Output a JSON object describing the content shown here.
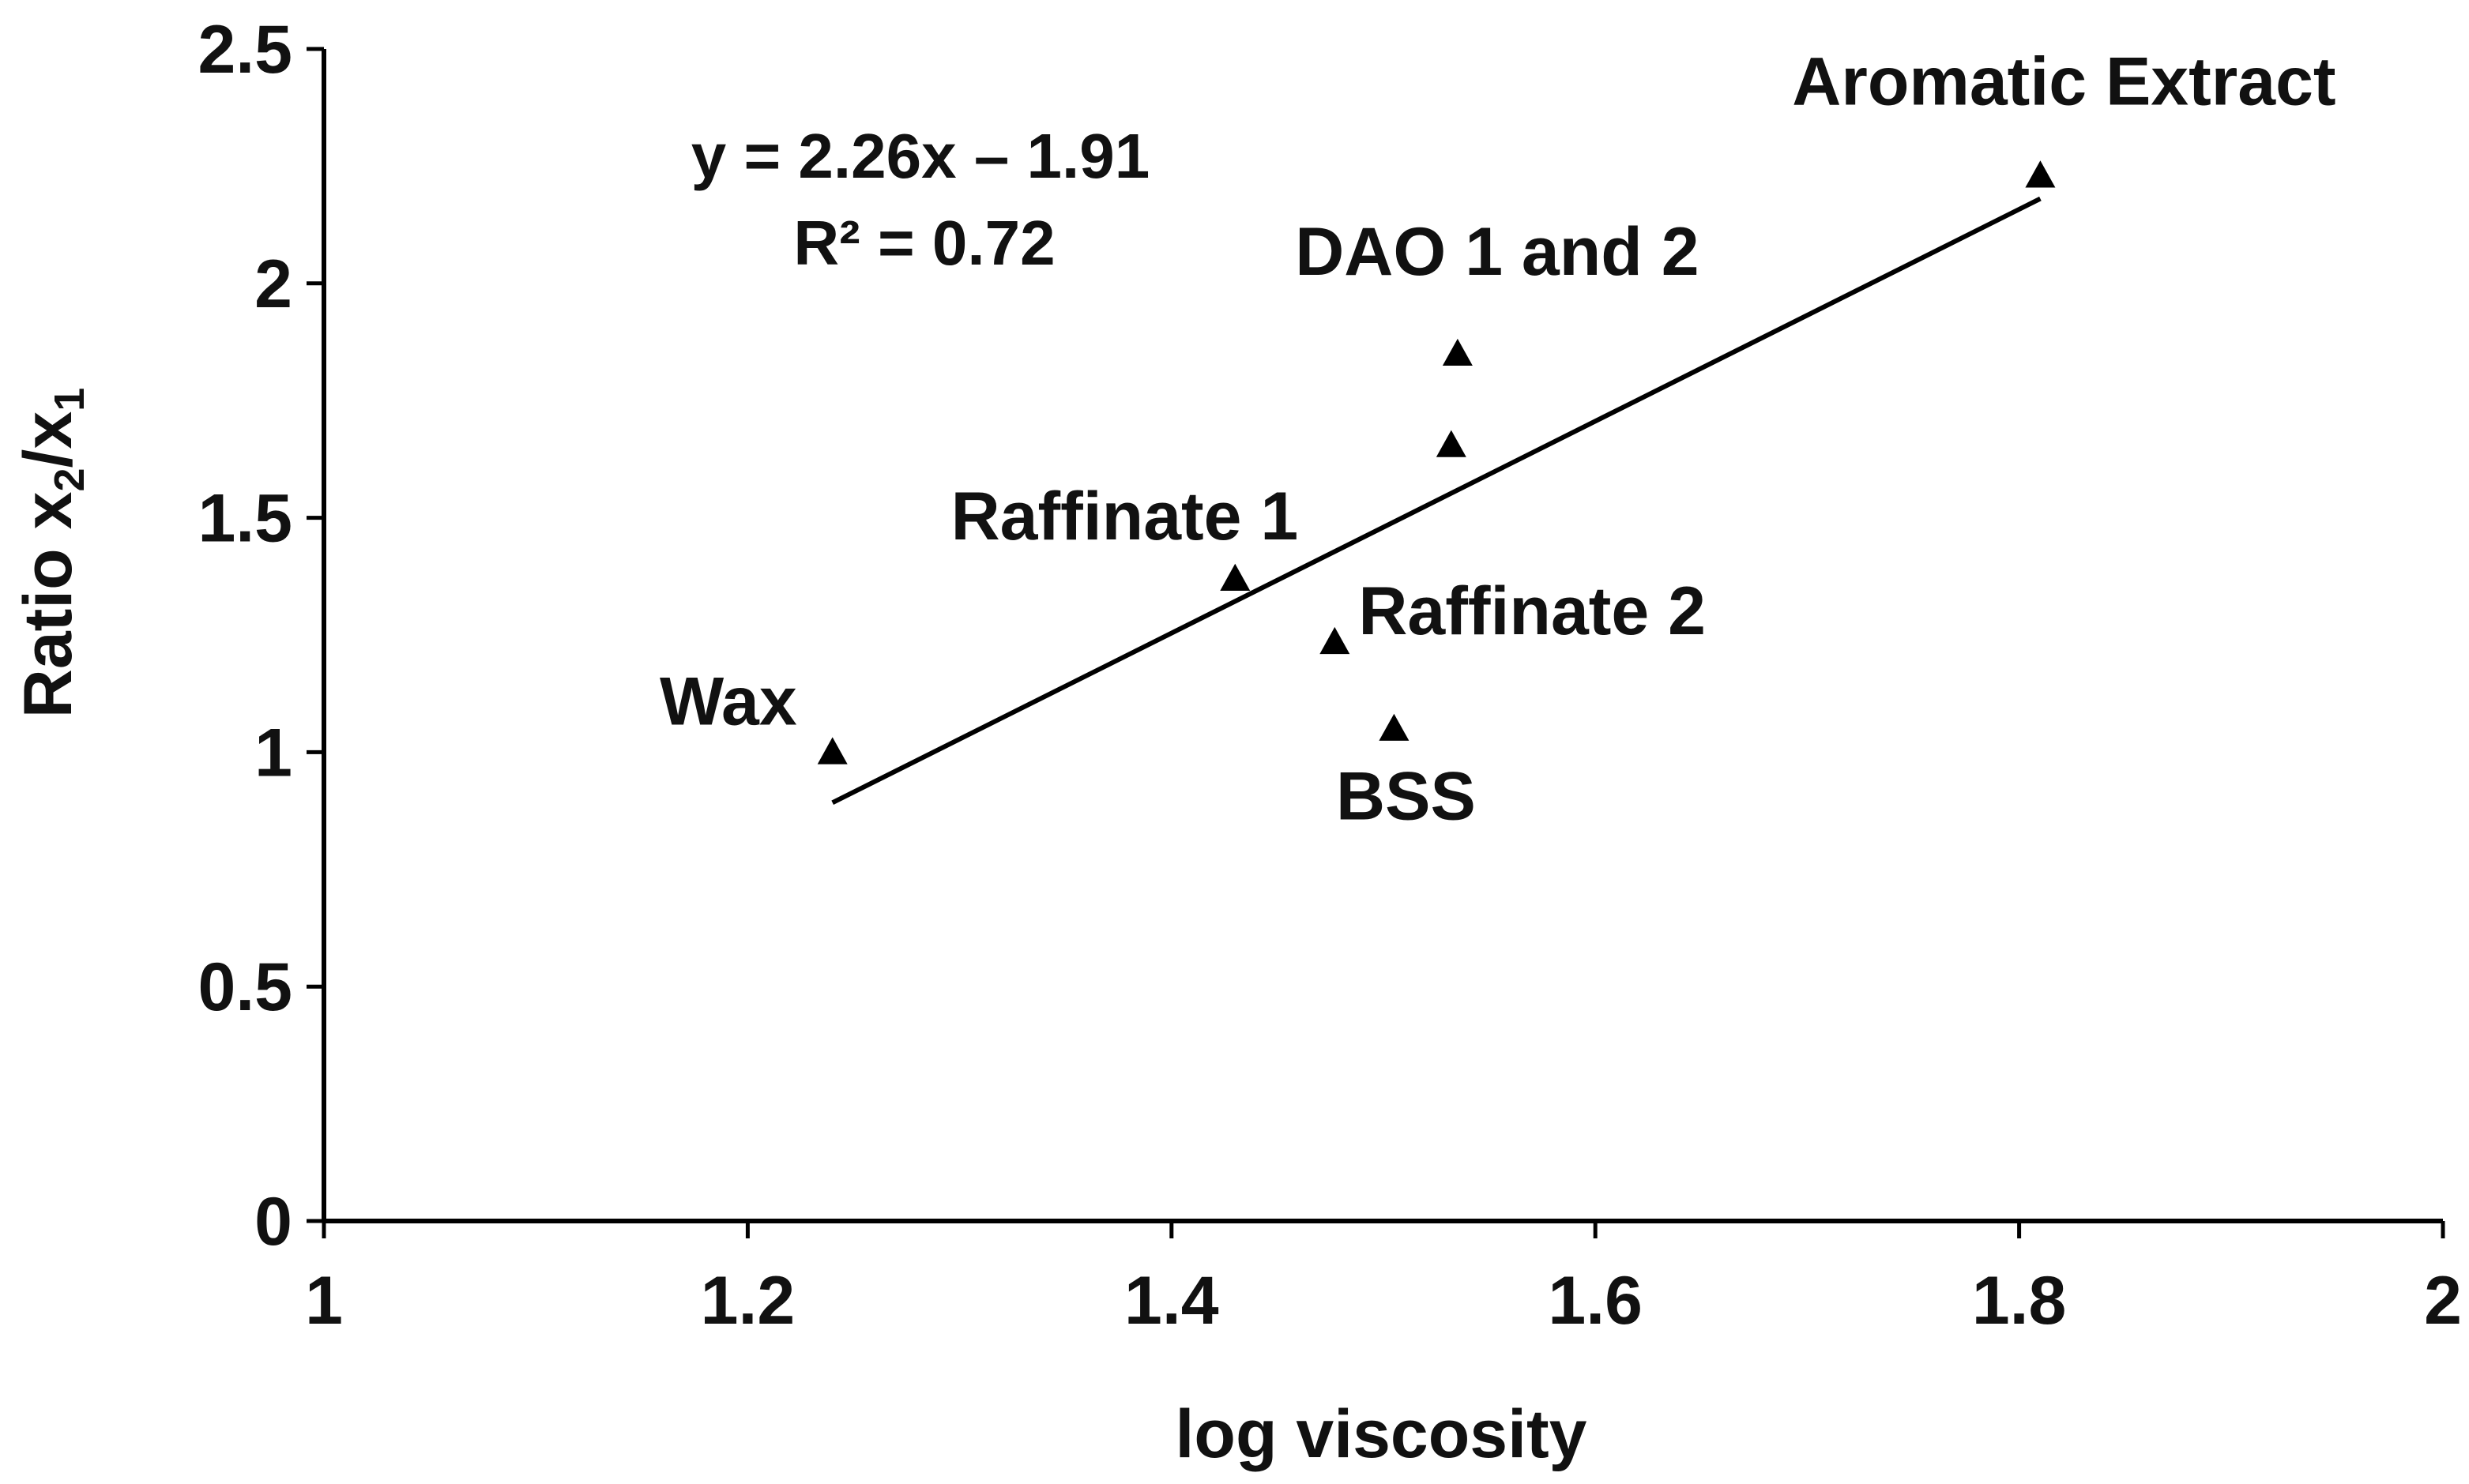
{
  "chart_data": {
    "type": "scatter",
    "title": "",
    "xlabel": "log viscosity",
    "ylabel_main": "Ratio x",
    "ylabel_sub1": "2",
    "ylabel_slash": "/x",
    "ylabel_sub2": "1",
    "xlim": [
      1,
      2
    ],
    "ylim": [
      0,
      2.5
    ],
    "x_ticks": [
      1,
      1.2,
      1.4,
      1.6,
      1.8,
      2
    ],
    "x_tick_labels": [
      "1",
      "1.2",
      "1.4",
      "1.6",
      "1.8",
      "2"
    ],
    "y_ticks": [
      0,
      0.5,
      1,
      1.5,
      2,
      2.5
    ],
    "y_tick_labels": [
      "0",
      "0.5",
      "1",
      "1.5",
      "2",
      "2.5"
    ],
    "grid": false,
    "legend": false,
    "marker": "triangle",
    "marker_color": "#000000",
    "points": [
      {
        "x": 1.24,
        "y": 1.0
      },
      {
        "x": 1.43,
        "y": 1.37
      },
      {
        "x": 1.477,
        "y": 1.235
      },
      {
        "x": 1.505,
        "y": 1.05
      },
      {
        "x": 1.532,
        "y": 1.655
      },
      {
        "x": 1.535,
        "y": 1.85
      },
      {
        "x": 1.81,
        "y": 2.23
      }
    ],
    "point_labels": [
      "Wax",
      "Raffinate 1",
      "Raffinate 2",
      "BSS",
      "DAO 1 and 2",
      "Aromatic Extract"
    ],
    "trendline": {
      "slope": 2.26,
      "intercept": -1.91,
      "x_range": [
        1.24,
        1.81
      ],
      "color": "#000000"
    },
    "equation_line1": "y = 2.26x – 1.91",
    "equation_line2": "R² = 0.72"
  }
}
